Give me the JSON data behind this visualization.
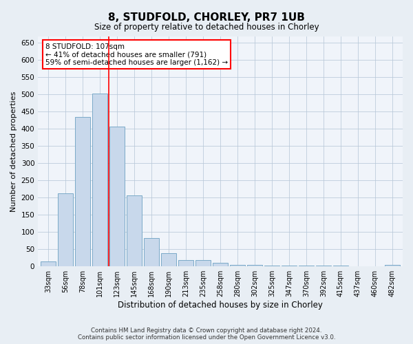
{
  "title": "8, STUDFOLD, CHORLEY, PR7 1UB",
  "subtitle": "Size of property relative to detached houses in Chorley",
  "xlabel": "Distribution of detached houses by size in Chorley",
  "ylabel": "Number of detached properties",
  "categories": [
    "33sqm",
    "56sqm",
    "78sqm",
    "101sqm",
    "123sqm",
    "145sqm",
    "168sqm",
    "190sqm",
    "213sqm",
    "235sqm",
    "258sqm",
    "280sqm",
    "302sqm",
    "325sqm",
    "347sqm",
    "370sqm",
    "392sqm",
    "415sqm",
    "437sqm",
    "460sqm",
    "482sqm"
  ],
  "values": [
    15,
    212,
    435,
    503,
    407,
    207,
    83,
    38,
    18,
    18,
    10,
    5,
    5,
    3,
    3,
    3,
    3,
    3,
    1,
    1,
    5
  ],
  "bar_color": "#c8d8eb",
  "bar_edge_color": "#7aaac8",
  "vline_x_index": 3.5,
  "vline_color": "red",
  "annotation_text": "8 STUDFOLD: 107sqm\n← 41% of detached houses are smaller (791)\n59% of semi-detached houses are larger (1,162) →",
  "annotation_box_color": "white",
  "annotation_box_edge_color": "red",
  "ylim": [
    0,
    670
  ],
  "yticks": [
    0,
    50,
    100,
    150,
    200,
    250,
    300,
    350,
    400,
    450,
    500,
    550,
    600,
    650
  ],
  "footer": "Contains HM Land Registry data © Crown copyright and database right 2024.\nContains public sector information licensed under the Open Government Licence v3.0.",
  "bg_color": "#e8eef4",
  "plot_bg_color": "#f0f4fa"
}
